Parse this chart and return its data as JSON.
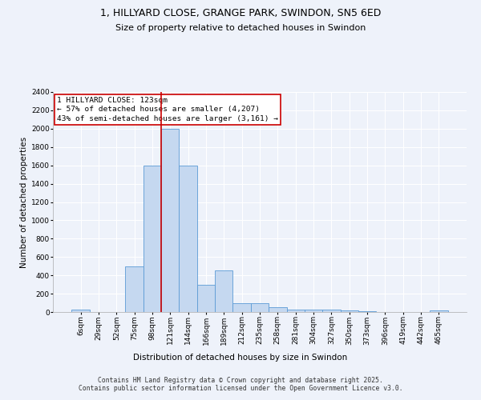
{
  "title_line1": "1, HILLYARD CLOSE, GRANGE PARK, SWINDON, SN5 6ED",
  "title_line2": "Size of property relative to detached houses in Swindon",
  "xlabel": "Distribution of detached houses by size in Swindon",
  "ylabel": "Number of detached properties",
  "bin_labels": [
    "6sqm",
    "29sqm",
    "52sqm",
    "75sqm",
    "98sqm",
    "121sqm",
    "144sqm",
    "166sqm",
    "189sqm",
    "212sqm",
    "235sqm",
    "258sqm",
    "281sqm",
    "304sqm",
    "327sqm",
    "350sqm",
    "373sqm",
    "396sqm",
    "419sqm",
    "442sqm",
    "465sqm"
  ],
  "bar_values": [
    30,
    0,
    0,
    500,
    1600,
    2000,
    1600,
    300,
    450,
    100,
    100,
    55,
    30,
    25,
    25,
    20,
    10,
    0,
    0,
    0,
    20
  ],
  "bar_color": "#c5d8f0",
  "bar_edge_color": "#5b9bd5",
  "vline_color": "#cc0000",
  "vline_bin_index": 5,
  "annotation_text": "1 HILLYARD CLOSE: 123sqm\n← 57% of detached houses are smaller (4,207)\n43% of semi-detached houses are larger (3,161) →",
  "annotation_box_color": "#cc0000",
  "ylim_max": 2400,
  "ytick_step": 200,
  "background_color": "#eef2fa",
  "grid_color": "#ffffff",
  "footer_text": "Contains HM Land Registry data © Crown copyright and database right 2025.\nContains public sector information licensed under the Open Government Licence v3.0.",
  "title_fontsize": 9,
  "subtitle_fontsize": 8,
  "axis_label_fontsize": 7.5,
  "tick_fontsize": 6.5,
  "annotation_fontsize": 6.8,
  "footer_fontsize": 5.8
}
